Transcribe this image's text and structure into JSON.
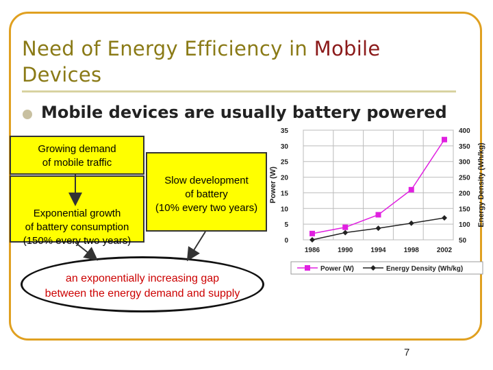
{
  "slide": {
    "title_prefix": "Need of Energy Efficiency in ",
    "title_highlight": "Mobile",
    "title_suffix": "Devices",
    "bullet": "Mobile devices are usually battery powered",
    "box_demand": [
      "Growing demand",
      "of mobile traffic"
    ],
    "box_battery": [
      "Slow development",
      "of battery",
      "(10% every two years)"
    ],
    "box_growth": [
      "Exponential growth",
      "of battery consumption",
      "(150% every two years)"
    ],
    "gap": [
      "an exponentially increasing gap",
      "between the energy demand and supply"
    ],
    "page_number": "7",
    "colors": {
      "title": "#8a7a16",
      "highlight": "#8b1a1a",
      "box": "#ffff00",
      "gap_text": "#cc0000",
      "frame": "#e0a020"
    }
  },
  "chart_data": {
    "type": "line",
    "x": [
      1986,
      1990,
      1994,
      1998,
      2002
    ],
    "xticks": [
      "1986",
      "1990",
      "1994",
      "1998",
      "2002"
    ],
    "ylabel": "Power (W)",
    "ylabel_right": "Energy Density (Wh/kg)",
    "ylim": [
      0,
      35
    ],
    "ylim_right": [
      50,
      400
    ],
    "yticks": [
      "0",
      "5",
      "10",
      "15",
      "20",
      "25",
      "30",
      "35"
    ],
    "yticks_right": [
      "50",
      "100",
      "150",
      "200",
      "250",
      "300",
      "350",
      "400"
    ],
    "grid": true,
    "legend_position": "bottom",
    "series": [
      {
        "name": "Power (W)",
        "axis": "left",
        "color": "#e020e0",
        "marker": "square",
        "values": [
          2,
          4,
          8,
          16,
          32
        ]
      },
      {
        "name": "Energy Density (Wh/kg)",
        "axis": "right",
        "color": "#222222",
        "marker": "diamond",
        "values": [
          50,
          73,
          87,
          103,
          120
        ]
      }
    ]
  }
}
